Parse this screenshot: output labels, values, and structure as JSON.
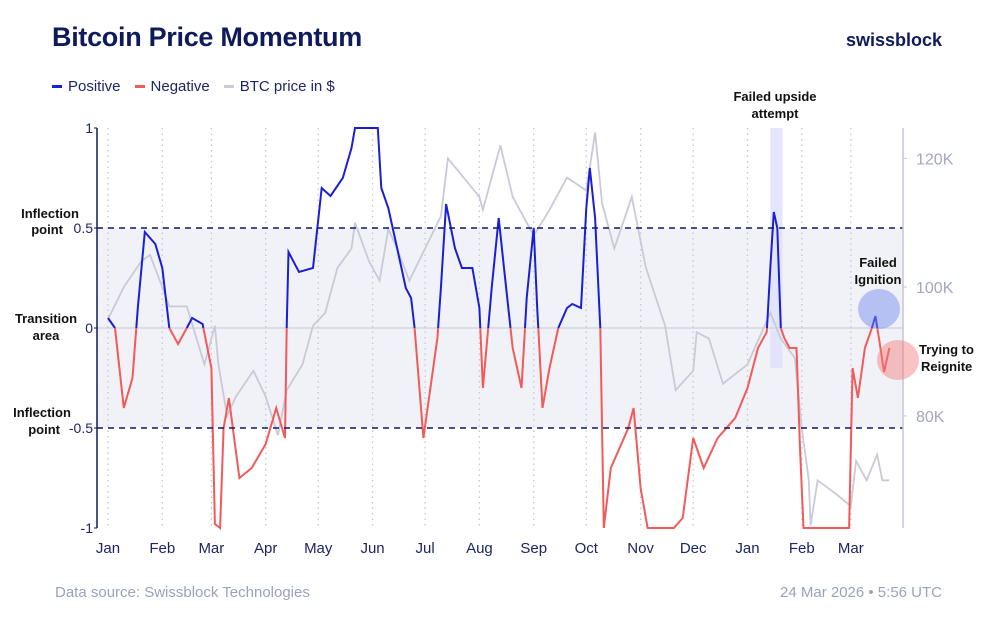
{
  "header": {
    "title": "Bitcoin Price Momentum",
    "brand": "swissblock"
  },
  "legend": [
    {
      "label": "Positive",
      "color": "#1a1fd6"
    },
    {
      "label": "Negative",
      "color": "#f25a5a"
    },
    {
      "label": "BTC price in $",
      "color": "#c9cad8"
    }
  ],
  "footer": {
    "source": "Data source: Swissblock Technologies",
    "timestamp": "24 Mar 2026 • 5:56 UTC"
  },
  "annotations": {
    "inflection_top": [
      "Inflection",
      "point"
    ],
    "transition": [
      "Transition",
      "area"
    ],
    "inflection_bottom": [
      "Inflection",
      "point"
    ],
    "failed_upside": [
      "Failed upside",
      "attempt"
    ],
    "failed_ignition": [
      "Failed",
      "Ignition"
    ],
    "reignite": [
      "Trying to",
      "Reignite"
    ]
  },
  "chart_data": {
    "type": "line",
    "title": "Bitcoin Price Momentum",
    "left_axis": {
      "ylim": [
        -1,
        1
      ],
      "ticks": [
        "1",
        "0.5",
        "0",
        "-0.5",
        "-1"
      ],
      "tick_values": [
        1,
        0.5,
        0,
        -0.5,
        -1
      ]
    },
    "right_axis": {
      "ylim": [
        62.6,
        124.7
      ],
      "ticks": [
        "120K",
        "100K",
        "80K"
      ],
      "tick_values": [
        120,
        100,
        80
      ]
    },
    "x_ticks": [
      {
        "label": "Jan",
        "date": "2025-01-01"
      },
      {
        "label": "Feb",
        "date": "2025-02-01"
      },
      {
        "label": "Mar",
        "date": "2025-03-01"
      },
      {
        "label": "Apr",
        "date": "2025-04-01"
      },
      {
        "label": "May",
        "date": "2025-05-01"
      },
      {
        "label": "Jun",
        "date": "2025-06-01"
      },
      {
        "label": "Jul",
        "date": "2025-07-01"
      },
      {
        "label": "Aug",
        "date": "2025-08-01"
      },
      {
        "label": "Sep",
        "date": "2025-09-01"
      },
      {
        "label": "Oct",
        "date": "2025-10-01"
      },
      {
        "label": "Nov",
        "date": "2025-11-01"
      },
      {
        "label": "Dec",
        "date": "2025-12-01"
      },
      {
        "label": "Jan",
        "date": "2026-01-01"
      },
      {
        "label": "Feb",
        "date": "2026-02-01"
      },
      {
        "label": "Mar",
        "date": "2026-03-01"
      }
    ],
    "grid": "vertical dotted at months",
    "shaded_band": [
      -0.5,
      0.5
    ],
    "highlight_range": [
      "2026-01-14",
      "2026-01-21"
    ],
    "momentum": [
      [
        "2025-01-01",
        0.05
      ],
      [
        "2025-01-05",
        0.0
      ],
      [
        "2025-01-10",
        -0.4
      ],
      [
        "2025-01-15",
        -0.25
      ],
      [
        "2025-01-18",
        0.1
      ],
      [
        "2025-01-22",
        0.48
      ],
      [
        "2025-01-28",
        0.42
      ],
      [
        "2025-02-01",
        0.3
      ],
      [
        "2025-02-05",
        0.0
      ],
      [
        "2025-02-10",
        -0.08
      ],
      [
        "2025-02-15",
        0.0
      ],
      [
        "2025-02-18",
        0.05
      ],
      [
        "2025-02-24",
        0.02
      ],
      [
        "2025-03-01",
        -0.2
      ],
      [
        "2025-03-03",
        -0.98
      ],
      [
        "2025-03-06",
        -1.0
      ],
      [
        "2025-03-08",
        -0.5
      ],
      [
        "2025-03-11",
        -0.35
      ],
      [
        "2025-03-17",
        -0.75
      ],
      [
        "2025-03-24",
        -0.7
      ],
      [
        "2025-04-01",
        -0.58
      ],
      [
        "2025-04-07",
        -0.4
      ],
      [
        "2025-04-12",
        -0.55
      ],
      [
        "2025-04-13",
        0.0
      ],
      [
        "2025-04-14",
        0.38
      ],
      [
        "2025-04-20",
        0.28
      ],
      [
        "2025-04-28",
        0.3
      ],
      [
        "2025-05-03",
        0.7
      ],
      [
        "2025-05-08",
        0.66
      ],
      [
        "2025-05-15",
        0.75
      ],
      [
        "2025-05-20",
        0.9
      ],
      [
        "2025-05-22",
        1.0
      ],
      [
        "2025-06-04",
        1.0
      ],
      [
        "2025-06-06",
        0.7
      ],
      [
        "2025-06-10",
        0.6
      ],
      [
        "2025-06-15",
        0.4
      ],
      [
        "2025-06-20",
        0.2
      ],
      [
        "2025-06-23",
        0.15
      ],
      [
        "2025-06-25",
        0.0
      ],
      [
        "2025-06-30",
        -0.55
      ],
      [
        "2025-07-04",
        -0.3
      ],
      [
        "2025-07-08",
        -0.05
      ],
      [
        "2025-07-10",
        0.2
      ],
      [
        "2025-07-13",
        0.62
      ],
      [
        "2025-07-18",
        0.4
      ],
      [
        "2025-07-22",
        0.3
      ],
      [
        "2025-07-28",
        0.3
      ],
      [
        "2025-08-01",
        0.1
      ],
      [
        "2025-08-03",
        -0.3
      ],
      [
        "2025-08-08",
        0.2
      ],
      [
        "2025-08-12",
        0.55
      ],
      [
        "2025-08-15",
        0.3
      ],
      [
        "2025-08-20",
        -0.1
      ],
      [
        "2025-08-25",
        -0.3
      ],
      [
        "2025-08-28",
        0.15
      ],
      [
        "2025-09-01",
        0.5
      ],
      [
        "2025-09-03",
        0.1
      ],
      [
        "2025-09-06",
        -0.4
      ],
      [
        "2025-09-10",
        -0.2
      ],
      [
        "2025-09-15",
        0.0
      ],
      [
        "2025-09-20",
        0.1
      ],
      [
        "2025-09-23",
        0.12
      ],
      [
        "2025-09-28",
        0.1
      ],
      [
        "2025-10-01",
        0.6
      ],
      [
        "2025-10-03",
        0.8
      ],
      [
        "2025-10-06",
        0.55
      ],
      [
        "2025-10-09",
        0.0
      ],
      [
        "2025-10-11",
        -1.0
      ],
      [
        "2025-10-15",
        -0.7
      ],
      [
        "2025-10-20",
        -0.6
      ],
      [
        "2025-10-25",
        -0.5
      ],
      [
        "2025-10-28",
        -0.4
      ],
      [
        "2025-11-01",
        -0.8
      ],
      [
        "2025-11-05",
        -1.0
      ],
      [
        "2025-11-20",
        -1.0
      ],
      [
        "2025-11-25",
        -0.95
      ],
      [
        "2025-12-01",
        -0.55
      ],
      [
        "2025-12-07",
        -0.7
      ],
      [
        "2025-12-15",
        -0.55
      ],
      [
        "2025-12-25",
        -0.45
      ],
      [
        "2026-01-01",
        -0.3
      ],
      [
        "2026-01-07",
        -0.1
      ],
      [
        "2026-01-12",
        -0.02
      ],
      [
        "2026-01-14",
        0.3
      ],
      [
        "2026-01-16",
        0.58
      ],
      [
        "2026-01-18",
        0.5
      ],
      [
        "2026-01-20",
        0.0
      ],
      [
        "2026-01-22",
        -0.05
      ],
      [
        "2026-01-25",
        -0.1
      ],
      [
        "2026-01-29",
        -0.1
      ],
      [
        "2026-01-31",
        -0.6
      ],
      [
        "2026-02-02",
        -1.0
      ],
      [
        "2026-02-28",
        -1.0
      ],
      [
        "2026-03-02",
        -0.2
      ],
      [
        "2026-03-05",
        -0.35
      ],
      [
        "2026-03-09",
        -0.1
      ],
      [
        "2026-03-13",
        0.0
      ],
      [
        "2026-03-15",
        0.06
      ],
      [
        "2026-03-17",
        -0.05
      ],
      [
        "2026-03-20",
        -0.22
      ],
      [
        "2026-03-23",
        -0.1
      ]
    ],
    "btc_price_k": [
      [
        "2025-01-01",
        95
      ],
      [
        "2025-01-10",
        100
      ],
      [
        "2025-01-20",
        104
      ],
      [
        "2025-01-25",
        105
      ],
      [
        "2025-02-01",
        100
      ],
      [
        "2025-02-05",
        97
      ],
      [
        "2025-02-15",
        97
      ],
      [
        "2025-02-25",
        88
      ],
      [
        "2025-03-03",
        94
      ],
      [
        "2025-03-05",
        88
      ],
      [
        "2025-03-10",
        80
      ],
      [
        "2025-03-15",
        83
      ],
      [
        "2025-03-25",
        87
      ],
      [
        "2025-04-01",
        83
      ],
      [
        "2025-04-08",
        77
      ],
      [
        "2025-04-13",
        84
      ],
      [
        "2025-04-22",
        88
      ],
      [
        "2025-04-28",
        94
      ],
      [
        "2025-05-05",
        96
      ],
      [
        "2025-05-12",
        103
      ],
      [
        "2025-05-20",
        106
      ],
      [
        "2025-05-22",
        110
      ],
      [
        "2025-05-30",
        104
      ],
      [
        "2025-06-05",
        101
      ],
      [
        "2025-06-10",
        109
      ],
      [
        "2025-06-15",
        106
      ],
      [
        "2025-06-22",
        101
      ],
      [
        "2025-07-01",
        106
      ],
      [
        "2025-07-10",
        111
      ],
      [
        "2025-07-14",
        120
      ],
      [
        "2025-07-20",
        118
      ],
      [
        "2025-08-01",
        114
      ],
      [
        "2025-08-03",
        112
      ],
      [
        "2025-08-13",
        122
      ],
      [
        "2025-08-20",
        114
      ],
      [
        "2025-09-01",
        108
      ],
      [
        "2025-09-10",
        112
      ],
      [
        "2025-09-20",
        117
      ],
      [
        "2025-10-01",
        115
      ],
      [
        "2025-10-06",
        124
      ],
      [
        "2025-10-10",
        113
      ],
      [
        "2025-10-17",
        106
      ],
      [
        "2025-10-27",
        114
      ],
      [
        "2025-11-04",
        103
      ],
      [
        "2025-11-15",
        94
      ],
      [
        "2025-11-21",
        84
      ],
      [
        "2025-12-01",
        87
      ],
      [
        "2025-12-03",
        93
      ],
      [
        "2025-12-10",
        92
      ],
      [
        "2025-12-18",
        85
      ],
      [
        "2026-01-01",
        88
      ],
      [
        "2026-01-14",
        96
      ],
      [
        "2026-01-20",
        92
      ],
      [
        "2026-01-28",
        89
      ],
      [
        "2026-02-01",
        78
      ],
      [
        "2026-02-05",
        70
      ],
      [
        "2026-02-06",
        63
      ],
      [
        "2026-02-10",
        70
      ],
      [
        "2026-02-20",
        68
      ],
      [
        "2026-03-01",
        66
      ],
      [
        "2026-03-04",
        73
      ],
      [
        "2026-03-10",
        70
      ],
      [
        "2026-03-16",
        74
      ],
      [
        "2026-03-19",
        70
      ],
      [
        "2026-03-23",
        70
      ]
    ]
  }
}
